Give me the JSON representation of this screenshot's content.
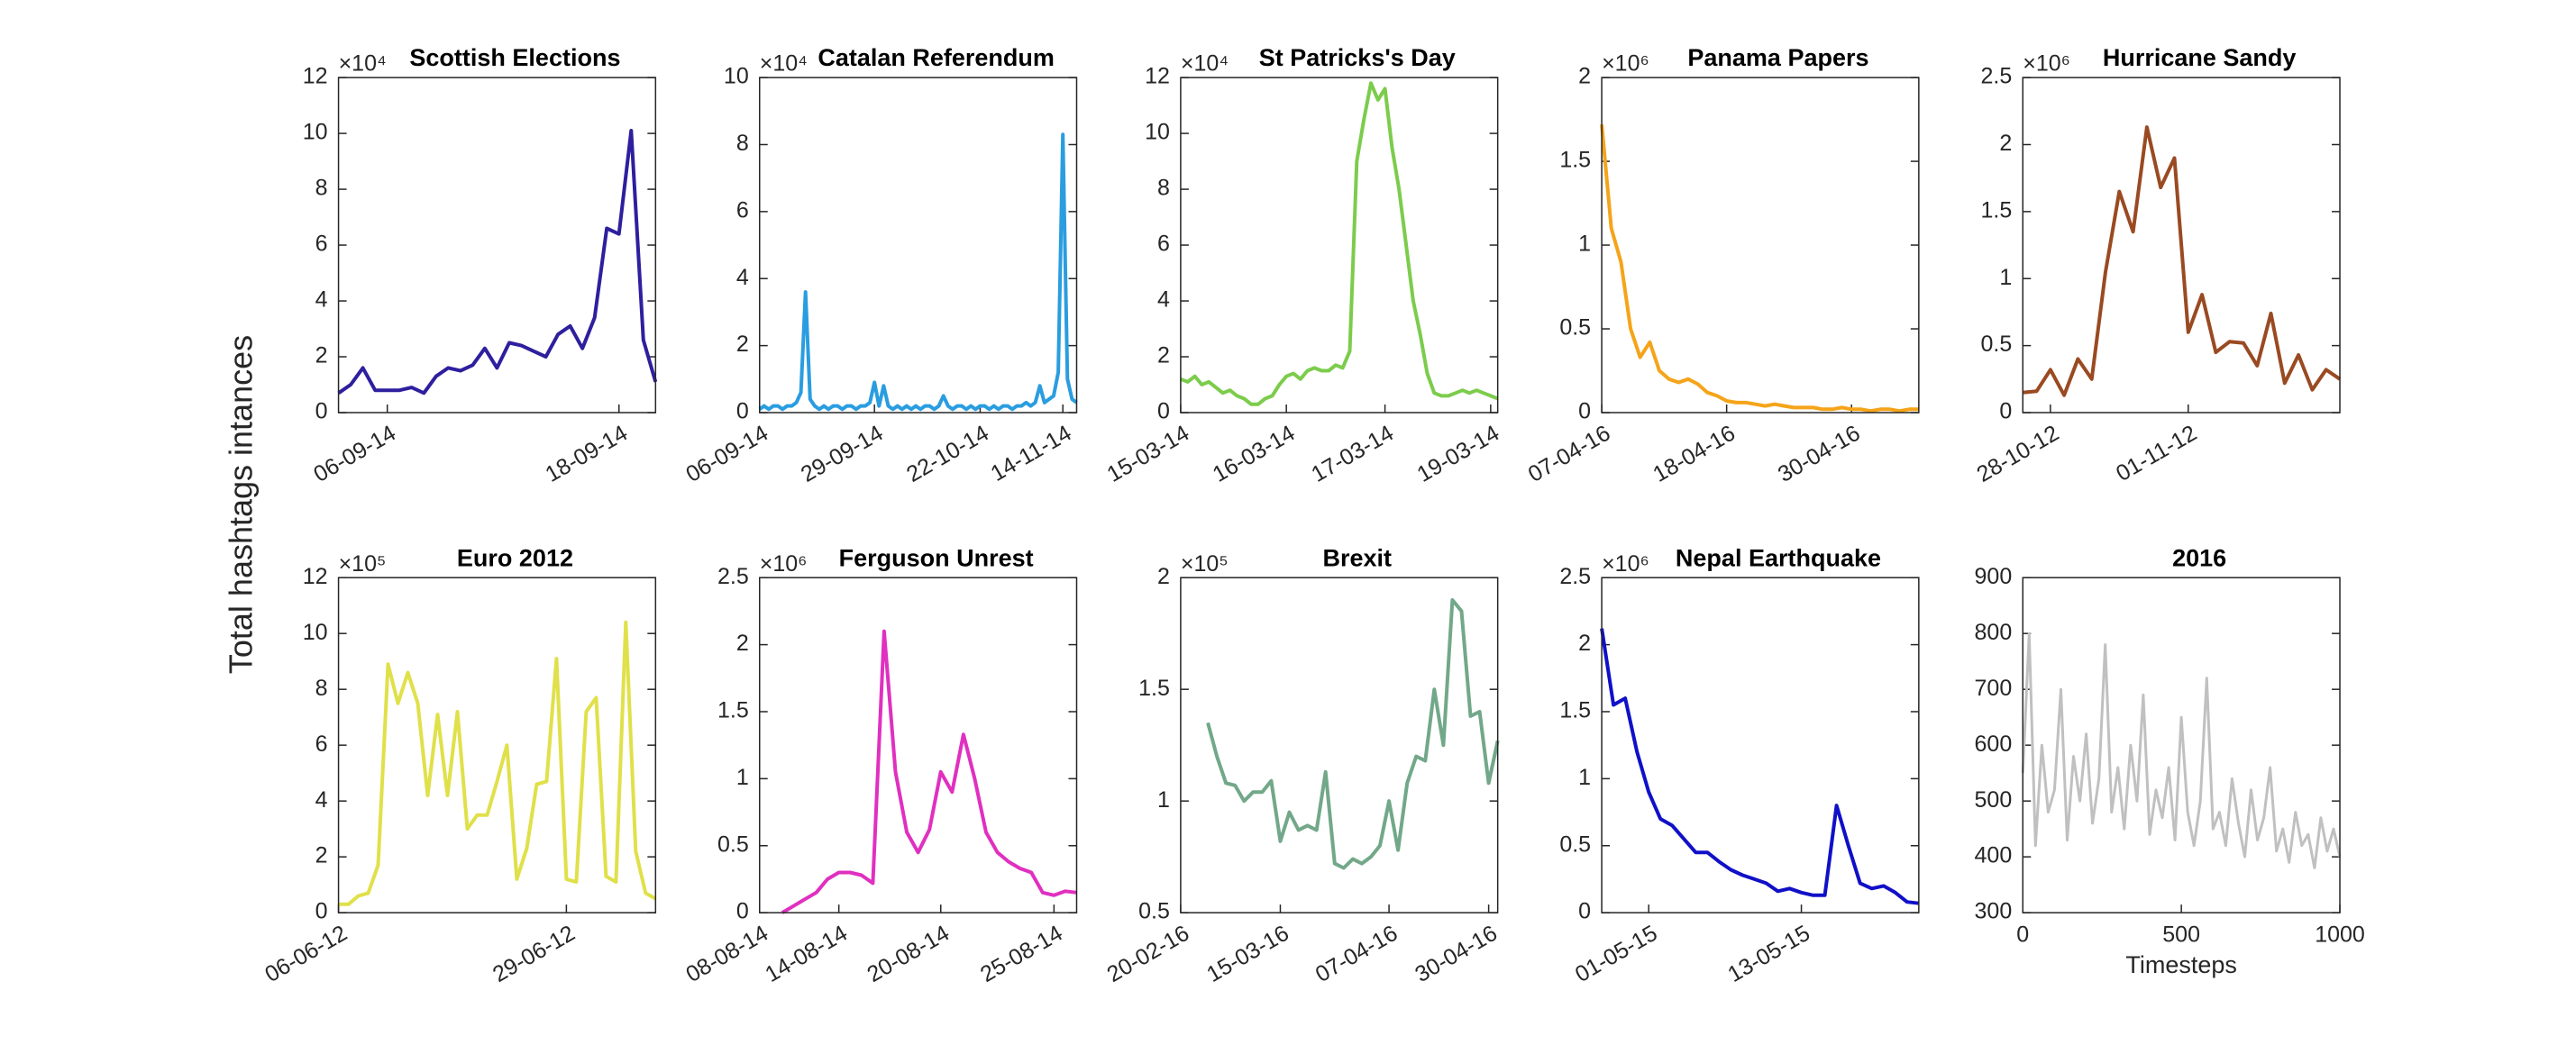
{
  "ylabel": "Total hashtags intances",
  "chart_data": [
    {
      "type": "line",
      "title": "Scottish Elections",
      "multiplier": "×10⁴",
      "color": "#2e1f9e",
      "categories": [
        null,
        null,
        null,
        null,
        "06-09-14",
        null,
        null,
        null,
        null,
        null,
        null,
        null,
        null,
        null,
        null,
        null,
        null,
        null,
        null,
        null,
        null,
        null,
        null,
        "18-09-14",
        null,
        null,
        null
      ],
      "values": [
        0.7,
        1.0,
        1.6,
        0.8,
        0.8,
        0.8,
        0.9,
        0.7,
        1.3,
        1.6,
        1.5,
        1.7,
        2.3,
        1.6,
        2.5,
        2.4,
        2.2,
        2.0,
        2.8,
        3.1,
        2.3,
        3.4,
        6.6,
        6.4,
        10.1,
        2.6,
        1.1
      ],
      "ylim": [
        0,
        12
      ],
      "yticks": [
        0,
        2,
        4,
        6,
        8,
        10,
        12
      ]
    },
    {
      "type": "line",
      "title": "Catalan Referendum",
      "multiplier": "×10⁴",
      "color": "#2a9de0",
      "categories": [
        "06-09-14",
        null,
        null,
        null,
        null,
        null,
        null,
        null,
        null,
        null,
        null,
        null,
        null,
        null,
        null,
        null,
        null,
        null,
        null,
        null,
        null,
        null,
        null,
        null,
        null,
        "29-09-14",
        null,
        null,
        null,
        null,
        null,
        null,
        null,
        null,
        null,
        null,
        null,
        null,
        null,
        null,
        null,
        null,
        null,
        null,
        null,
        null,
        null,
        null,
        "22-10-14",
        null,
        null,
        null,
        null,
        null,
        null,
        null,
        null,
        null,
        null,
        null,
        null,
        null,
        null,
        null,
        null,
        null,
        "14-11-14",
        null,
        null,
        null
      ],
      "values": [
        0.1,
        0.2,
        0.1,
        0.2,
        0.2,
        0.1,
        0.2,
        0.2,
        0.3,
        0.6,
        3.6,
        0.4,
        0.2,
        0.1,
        0.2,
        0.1,
        0.2,
        0.2,
        0.1,
        0.2,
        0.2,
        0.1,
        0.2,
        0.2,
        0.3,
        0.9,
        0.2,
        0.8,
        0.2,
        0.1,
        0.2,
        0.1,
        0.2,
        0.1,
        0.2,
        0.1,
        0.2,
        0.2,
        0.1,
        0.2,
        0.5,
        0.2,
        0.1,
        0.2,
        0.2,
        0.1,
        0.2,
        0.1,
        0.2,
        0.2,
        0.1,
        0.2,
        0.1,
        0.2,
        0.2,
        0.1,
        0.2,
        0.2,
        0.3,
        0.2,
        0.3,
        0.8,
        0.3,
        0.4,
        0.5,
        1.2,
        8.3,
        1.0,
        0.4,
        0.3
      ],
      "ylim": [
        0,
        10
      ],
      "yticks": [
        0,
        2,
        4,
        6,
        8,
        10
      ]
    },
    {
      "type": "line",
      "title": "St Patricks's Day",
      "multiplier": "×10⁴",
      "color": "#7ccc4c",
      "categories": [
        "15-03-14",
        null,
        null,
        null,
        null,
        null,
        null,
        null,
        null,
        null,
        null,
        null,
        null,
        null,
        null,
        "16-03-14",
        null,
        null,
        null,
        null,
        null,
        null,
        null,
        null,
        null,
        null,
        null,
        null,
        null,
        "17-03-14",
        null,
        null,
        null,
        null,
        null,
        null,
        null,
        null,
        null,
        null,
        null,
        null,
        null,
        null,
        "19-03-14",
        null
      ],
      "values": [
        1.2,
        1.1,
        1.3,
        1.0,
        1.1,
        0.9,
        0.7,
        0.8,
        0.6,
        0.5,
        0.3,
        0.3,
        0.5,
        0.6,
        1.0,
        1.3,
        1.4,
        1.2,
        1.5,
        1.6,
        1.5,
        1.5,
        1.7,
        1.6,
        2.2,
        9.0,
        10.5,
        11.8,
        11.2,
        11.6,
        9.5,
        8.0,
        6.0,
        4.0,
        2.8,
        1.4,
        0.7,
        0.6,
        0.6,
        0.7,
        0.8,
        0.7,
        0.8,
        0.7,
        0.6,
        0.5
      ],
      "ylim": [
        0,
        12
      ],
      "yticks": [
        0,
        2,
        4,
        6,
        8,
        10,
        12
      ]
    },
    {
      "type": "line",
      "title": "Panama Papers",
      "multiplier": "×10⁶",
      "color": "#f5a41a",
      "categories": [
        "07-04-16",
        null,
        null,
        null,
        null,
        null,
        null,
        null,
        null,
        null,
        null,
        null,
        null,
        "18-04-16",
        null,
        null,
        null,
        null,
        null,
        null,
        null,
        null,
        null,
        null,
        null,
        null,
        "30-04-16",
        null,
        null,
        null,
        null,
        null,
        null,
        null
      ],
      "values": [
        1.72,
        1.1,
        0.9,
        0.5,
        0.33,
        0.42,
        0.25,
        0.2,
        0.18,
        0.2,
        0.17,
        0.12,
        0.1,
        0.07,
        0.06,
        0.06,
        0.05,
        0.04,
        0.05,
        0.04,
        0.03,
        0.03,
        0.03,
        0.02,
        0.02,
        0.03,
        0.02,
        0.02,
        0.01,
        0.02,
        0.02,
        0.01,
        0.02,
        0.02
      ],
      "ylim": [
        0,
        2
      ],
      "yticks": [
        0,
        0.5,
        1,
        1.5,
        2
      ]
    },
    {
      "type": "line",
      "title": "Hurricane Sandy",
      "multiplier": "×10⁶",
      "color": "#9a4a22",
      "categories": [
        null,
        null,
        "28-10-12",
        null,
        null,
        null,
        null,
        null,
        null,
        null,
        null,
        null,
        "01-11-12",
        null,
        null,
        null,
        null,
        null,
        null,
        null,
        null,
        null,
        null,
        null
      ],
      "values": [
        0.15,
        0.16,
        0.32,
        0.13,
        0.4,
        0.25,
        1.05,
        1.65,
        1.35,
        2.13,
        1.68,
        1.9,
        0.6,
        0.88,
        0.45,
        0.53,
        0.52,
        0.35,
        0.74,
        0.22,
        0.43,
        0.17,
        0.32,
        0.25
      ],
      "ylim": [
        0,
        2.5
      ],
      "yticks": [
        0,
        0.5,
        1,
        1.5,
        2,
        2.5
      ]
    },
    {
      "type": "line",
      "title": "Euro 2012",
      "multiplier": "×10⁵",
      "color": "#e0e04a",
      "categories": [
        "06-06-12",
        null,
        null,
        null,
        null,
        null,
        null,
        null,
        null,
        null,
        null,
        null,
        null,
        null,
        null,
        null,
        null,
        null,
        null,
        null,
        null,
        null,
        null,
        "29-06-12",
        null,
        null,
        null,
        null,
        null,
        null,
        null,
        null,
        null
      ],
      "values": [
        0.3,
        0.3,
        0.6,
        0.7,
        1.7,
        8.9,
        7.5,
        8.6,
        7.5,
        4.2,
        7.1,
        4.2,
        7.2,
        3.0,
        3.5,
        3.5,
        4.7,
        6.0,
        1.2,
        2.3,
        4.6,
        4.7,
        9.1,
        1.2,
        1.1,
        7.2,
        7.7,
        1.3,
        1.1,
        10.4,
        2.2,
        0.7,
        0.5
      ],
      "ylim": [
        0,
        12
      ],
      "yticks": [
        0,
        2,
        4,
        6,
        8,
        10,
        12
      ]
    },
    {
      "type": "line",
      "title": "Ferguson Unrest",
      "multiplier": "×10⁶",
      "color": "#e030c0",
      "categories": [
        "08-08-14",
        null,
        null,
        null,
        null,
        null,
        null,
        "14-08-14",
        null,
        null,
        null,
        null,
        null,
        null,
        null,
        null,
        "20-08-14",
        null,
        null,
        null,
        null,
        null,
        null,
        null,
        null,
        null,
        "25-08-14",
        null,
        null
      ],
      "values": [
        null,
        null,
        0,
        0.05,
        0.1,
        0.15,
        0.25,
        0.3,
        0.3,
        0.28,
        0.22,
        2.1,
        1.05,
        0.6,
        0.45,
        0.62,
        1.05,
        0.9,
        1.33,
        1.0,
        0.6,
        0.45,
        0.38,
        0.33,
        0.3,
        0.15,
        0.13,
        0.16,
        0.15
      ],
      "ylim": [
        0,
        2.5
      ],
      "yticks": [
        0,
        0.5,
        1,
        1.5,
        2,
        2.5
      ]
    },
    {
      "type": "line",
      "title": "Brexit",
      "multiplier": "×10⁵",
      "color": "#72a889",
      "categories": [
        "20-02-16",
        null,
        null,
        null,
        null,
        null,
        null,
        null,
        null,
        null,
        null,
        "15-03-16",
        null,
        null,
        null,
        null,
        null,
        null,
        null,
        null,
        null,
        null,
        null,
        "07-04-16",
        null,
        null,
        null,
        null,
        null,
        null,
        null,
        null,
        null,
        null,
        "30-04-16",
        null
      ],
      "values": [
        null,
        null,
        null,
        1.35,
        1.2,
        1.08,
        1.07,
        1.0,
        1.04,
        1.04,
        1.09,
        0.82,
        0.95,
        0.87,
        0.89,
        0.87,
        1.13,
        0.72,
        0.7,
        0.74,
        0.72,
        0.75,
        0.8,
        1.0,
        0.78,
        1.08,
        1.2,
        1.18,
        1.5,
        1.25,
        1.9,
        1.85,
        1.38,
        1.4,
        1.08,
        1.27
      ],
      "ylim": [
        0.5,
        2
      ],
      "yticks": [
        0.5,
        1,
        1.5,
        2
      ]
    },
    {
      "type": "line",
      "title": "Nepal Earthquake",
      "multiplier": "×10⁶",
      "color": "#1010c8",
      "categories": [
        null,
        null,
        null,
        null,
        "01-05-15",
        null,
        null,
        null,
        null,
        null,
        null,
        null,
        null,
        null,
        null,
        null,
        null,
        "13-05-15",
        null,
        null,
        null,
        null,
        null,
        null,
        null,
        null,
        null,
        null
      ],
      "values": [
        2.12,
        1.55,
        1.6,
        1.2,
        0.9,
        0.7,
        0.65,
        0.55,
        0.45,
        0.45,
        0.38,
        0.32,
        0.28,
        0.25,
        0.22,
        0.16,
        0.18,
        0.15,
        0.13,
        0.13,
        0.8,
        0.5,
        0.22,
        0.18,
        0.2,
        0.15,
        0.08,
        0.07
      ],
      "ylim": [
        0,
        2.5
      ],
      "yticks": [
        0,
        0.5,
        1,
        1.5,
        2,
        2.5
      ]
    },
    {
      "type": "line",
      "title": "2016",
      "color": "#c0c0c0",
      "xlabel": "Timesteps",
      "x": [
        0,
        20,
        40,
        60,
        80,
        100,
        120,
        140,
        160,
        180,
        200,
        220,
        240,
        260,
        280,
        300,
        320,
        340,
        360,
        380,
        400,
        420,
        440,
        460,
        480,
        500,
        520,
        540,
        560,
        580,
        600,
        620,
        640,
        660,
        680,
        700,
        720,
        740,
        760,
        780,
        800,
        820,
        840,
        860,
        880,
        900,
        920,
        940,
        960,
        980,
        1000
      ],
      "values": [
        550,
        800,
        420,
        600,
        480,
        520,
        700,
        430,
        580,
        500,
        620,
        460,
        540,
        780,
        480,
        560,
        450,
        600,
        500,
        690,
        440,
        520,
        470,
        560,
        430,
        650,
        480,
        420,
        500,
        720,
        450,
        480,
        420,
        540,
        460,
        400,
        520,
        430,
        470,
        560,
        410,
        450,
        390,
        480,
        420,
        440,
        380,
        470,
        410,
        450,
        400
      ],
      "xlim": [
        0,
        1000
      ],
      "xticks": [
        0,
        500,
        1000
      ],
      "ylim": [
        300,
        900
      ],
      "yticks": [
        300,
        400,
        500,
        600,
        700,
        800,
        900
      ]
    }
  ]
}
